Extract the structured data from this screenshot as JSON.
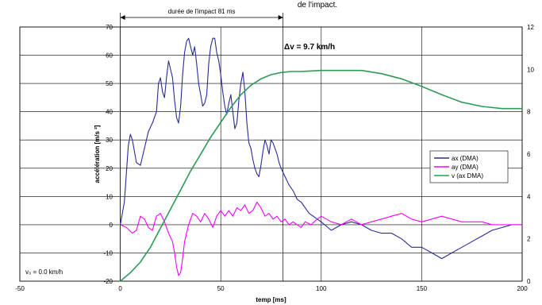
{
  "chart_data": {
    "type": "line",
    "title_fragment": "de l'impact.",
    "xlabel": "temp [ms]",
    "ylabel": "accélération [m/s ²]",
    "xlim": [
      -50,
      200
    ],
    "ylim_left": [
      -20,
      70
    ],
    "ylim_right": [
      0,
      12
    ],
    "x_ticks": [
      "-50",
      "0",
      "50",
      "100",
      "150",
      "200"
    ],
    "y_left_ticks": [
      "-20",
      "-10",
      "0",
      "10",
      "20",
      "30",
      "40",
      "50",
      "60",
      "70"
    ],
    "y_right_ticks": [
      "0",
      "2",
      "4",
      "6",
      "8",
      "10",
      "12"
    ],
    "grid": true,
    "legend_position": "right",
    "annotations": {
      "impact_duration": "durée de l'impact 81 ms",
      "impact_start": 0,
      "impact_end": 81,
      "delta_v": "Δv =  9.7 km/h",
      "v0": "v₀ =    0.0 km/h"
    },
    "series": [
      {
        "name": "ax (DMA)",
        "color": "#2a2a9a",
        "axis": "left",
        "points": [
          [
            0,
            0
          ],
          [
            2,
            8
          ],
          [
            4,
            28
          ],
          [
            5,
            32
          ],
          [
            6,
            30
          ],
          [
            8,
            22
          ],
          [
            10,
            21
          ],
          [
            12,
            27
          ],
          [
            14,
            33
          ],
          [
            16,
            36
          ],
          [
            18,
            40
          ],
          [
            19,
            50
          ],
          [
            20,
            52
          ],
          [
            21,
            47
          ],
          [
            22,
            45
          ],
          [
            23,
            52
          ],
          [
            24,
            58
          ],
          [
            25,
            55
          ],
          [
            26,
            52
          ],
          [
            27,
            44
          ],
          [
            28,
            38
          ],
          [
            29,
            36
          ],
          [
            30,
            42
          ],
          [
            31,
            53
          ],
          [
            32,
            61
          ],
          [
            33,
            65
          ],
          [
            34,
            66
          ],
          [
            35,
            63
          ],
          [
            36,
            60
          ],
          [
            37,
            63
          ],
          [
            38,
            57
          ],
          [
            39,
            50
          ],
          [
            40,
            46
          ],
          [
            41,
            42
          ],
          [
            42,
            43
          ],
          [
            43,
            46
          ],
          [
            44,
            57
          ],
          [
            45,
            63
          ],
          [
            46,
            66
          ],
          [
            47,
            66
          ],
          [
            48,
            61
          ],
          [
            49,
            58
          ],
          [
            50,
            53
          ],
          [
            51,
            47
          ],
          [
            52,
            42
          ],
          [
            53,
            39
          ],
          [
            54,
            43
          ],
          [
            55,
            46
          ],
          [
            56,
            40
          ],
          [
            57,
            34
          ],
          [
            58,
            36
          ],
          [
            59,
            44
          ],
          [
            60,
            50
          ],
          [
            61,
            54
          ],
          [
            62,
            47
          ],
          [
            63,
            36
          ],
          [
            64,
            29
          ],
          [
            65,
            27
          ],
          [
            66,
            23
          ],
          [
            67,
            20
          ],
          [
            68,
            18
          ],
          [
            69,
            17
          ],
          [
            70,
            21
          ],
          [
            71,
            26
          ],
          [
            72,
            30
          ],
          [
            73,
            28
          ],
          [
            74,
            25
          ],
          [
            75,
            30
          ],
          [
            76,
            29
          ],
          [
            77,
            27
          ],
          [
            78,
            25
          ],
          [
            79,
            22
          ],
          [
            80,
            20
          ],
          [
            82,
            17
          ],
          [
            84,
            14
          ],
          [
            86,
            12
          ],
          [
            88,
            9
          ],
          [
            90,
            8
          ],
          [
            92,
            6
          ],
          [
            94,
            4
          ],
          [
            96,
            3
          ],
          [
            98,
            2
          ],
          [
            100,
            1
          ],
          [
            105,
            -2
          ],
          [
            110,
            0
          ],
          [
            115,
            1
          ],
          [
            120,
            0
          ],
          [
            125,
            -2
          ],
          [
            130,
            -3
          ],
          [
            135,
            -3
          ],
          [
            140,
            -5
          ],
          [
            145,
            -8
          ],
          [
            150,
            -8
          ],
          [
            155,
            -10
          ],
          [
            160,
            -12
          ],
          [
            165,
            -10
          ],
          [
            170,
            -8
          ],
          [
            175,
            -6
          ],
          [
            180,
            -4
          ],
          [
            185,
            -2
          ],
          [
            190,
            -1
          ],
          [
            195,
            0
          ],
          [
            200,
            0
          ]
        ]
      },
      {
        "name": "ay (DMA)",
        "color": "#ff00ff",
        "axis": "left",
        "points": [
          [
            0,
            0
          ],
          [
            3,
            -1
          ],
          [
            6,
            -3
          ],
          [
            8,
            -2
          ],
          [
            10,
            3
          ],
          [
            12,
            2
          ],
          [
            14,
            -1
          ],
          [
            16,
            -2
          ],
          [
            18,
            3
          ],
          [
            20,
            4
          ],
          [
            22,
            1
          ],
          [
            24,
            -3
          ],
          [
            26,
            -6
          ],
          [
            27,
            -10
          ],
          [
            28,
            -15
          ],
          [
            29,
            -18
          ],
          [
            30,
            -17
          ],
          [
            31,
            -12
          ],
          [
            32,
            -6
          ],
          [
            34,
            0
          ],
          [
            36,
            4
          ],
          [
            38,
            3
          ],
          [
            40,
            1
          ],
          [
            42,
            4
          ],
          [
            44,
            2
          ],
          [
            46,
            -1
          ],
          [
            48,
            3
          ],
          [
            50,
            5
          ],
          [
            52,
            3
          ],
          [
            54,
            5
          ],
          [
            56,
            3
          ],
          [
            58,
            6
          ],
          [
            60,
            5
          ],
          [
            62,
            7
          ],
          [
            64,
            4
          ],
          [
            66,
            5
          ],
          [
            68,
            8
          ],
          [
            70,
            6
          ],
          [
            72,
            3
          ],
          [
            74,
            4
          ],
          [
            76,
            2
          ],
          [
            78,
            3
          ],
          [
            80,
            1
          ],
          [
            82,
            2
          ],
          [
            84,
            0
          ],
          [
            86,
            1
          ],
          [
            88,
            0
          ],
          [
            90,
            -1
          ],
          [
            92,
            1
          ],
          [
            95,
            0
          ],
          [
            98,
            2
          ],
          [
            100,
            3
          ],
          [
            105,
            1
          ],
          [
            110,
            0
          ],
          [
            115,
            2
          ],
          [
            120,
            0
          ],
          [
            125,
            1
          ],
          [
            130,
            2
          ],
          [
            135,
            3
          ],
          [
            140,
            4
          ],
          [
            145,
            2
          ],
          [
            150,
            1
          ],
          [
            155,
            2
          ],
          [
            160,
            3
          ],
          [
            165,
            2
          ],
          [
            170,
            1
          ],
          [
            175,
            1
          ],
          [
            180,
            1
          ],
          [
            185,
            0
          ],
          [
            190,
            0
          ],
          [
            195,
            0
          ],
          [
            200,
            0
          ]
        ]
      },
      {
        "name": "v (ax DMA)",
        "color": "#2e9b57",
        "axis": "right",
        "points": [
          [
            0,
            0
          ],
          [
            5,
            0.4
          ],
          [
            10,
            0.9
          ],
          [
            15,
            1.6
          ],
          [
            20,
            2.5
          ],
          [
            25,
            3.4
          ],
          [
            30,
            4.3
          ],
          [
            35,
            5.2
          ],
          [
            40,
            6.0
          ],
          [
            45,
            6.8
          ],
          [
            50,
            7.5
          ],
          [
            55,
            8.2
          ],
          [
            60,
            8.8
          ],
          [
            65,
            9.25
          ],
          [
            70,
            9.55
          ],
          [
            75,
            9.75
          ],
          [
            80,
            9.85
          ],
          [
            85,
            9.9
          ],
          [
            90,
            9.9
          ],
          [
            100,
            9.95
          ],
          [
            110,
            9.95
          ],
          [
            120,
            9.95
          ],
          [
            130,
            9.8
          ],
          [
            140,
            9.55
          ],
          [
            150,
            9.2
          ],
          [
            160,
            8.8
          ],
          [
            170,
            8.45
          ],
          [
            180,
            8.25
          ],
          [
            190,
            8.15
          ],
          [
            200,
            8.15
          ]
        ]
      }
    ]
  }
}
